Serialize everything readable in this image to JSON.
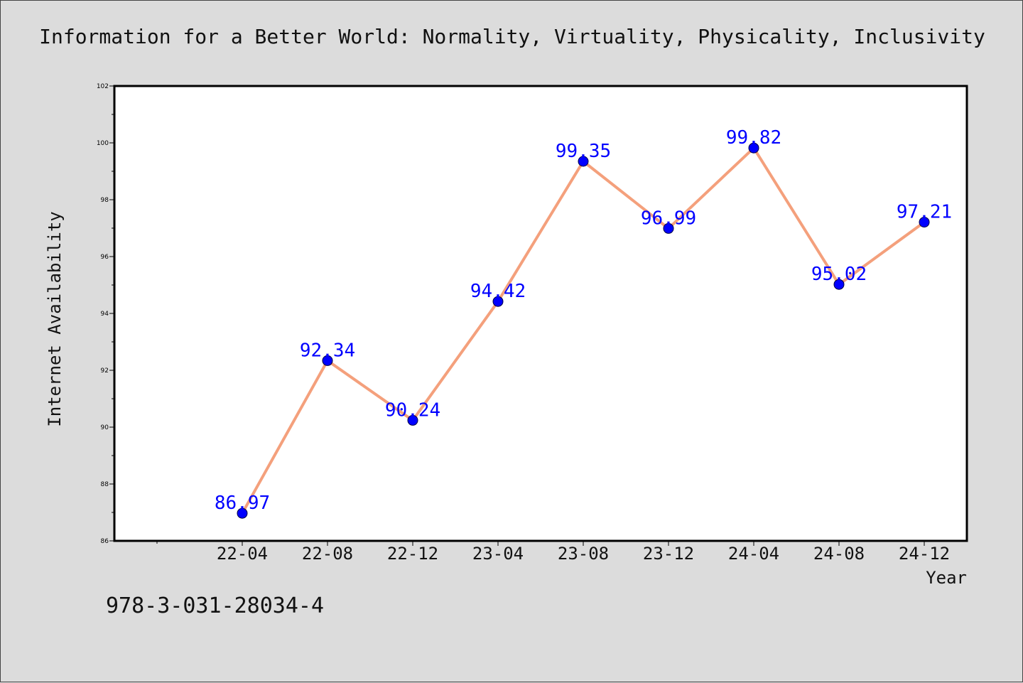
{
  "title": "Information for a Better World: Normality, Virtuality, Physicality, Inclusivity",
  "footer": "978-3-031-28034-4",
  "chart_data": {
    "type": "line",
    "title": "Information for a Better World: Normality, Virtuality, Physicality, Inclusivity",
    "xlabel": "Year",
    "ylabel": "Internet Availability",
    "categories": [
      "22-04",
      "22-08",
      "22-12",
      "23-04",
      "23-08",
      "23-12",
      "24-04",
      "24-08",
      "24-12"
    ],
    "values": [
      86.97,
      92.34,
      90.24,
      94.42,
      99.35,
      96.99,
      99.82,
      95.02,
      97.21
    ],
    "ylim": [
      86,
      102
    ],
    "yticks": [
      86,
      88,
      90,
      92,
      94,
      96,
      98,
      100,
      102
    ],
    "ytick_labels": [
      "86",
      "88",
      "90",
      "92",
      "94",
      "96",
      "98",
      "100",
      "102"
    ],
    "grid": false,
    "data_labels": true,
    "colors": {
      "line": "#f4a07c",
      "marker": "#0000ff",
      "label": "#0000ff",
      "plot_bg": "#ffffff",
      "figure_bg": "#dcdcdc"
    }
  }
}
